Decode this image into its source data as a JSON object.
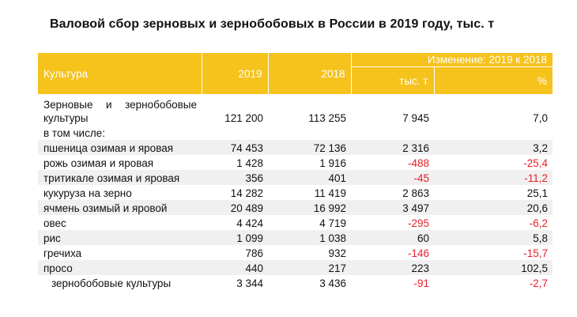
{
  "title": "Валовой сбор зерновых и зернобобовых в России в 2019 году, тыс. т",
  "table": {
    "headers": {
      "culture": "Культура",
      "y2019": "2019",
      "y2018": "2018",
      "change": "Изменение: 2019 к 2018",
      "abs": "тыс. т",
      "pct": "%"
    },
    "rows": [
      {
        "name": "Зерновые и зернобобовые культуры",
        "v2019": "121 200",
        "v2018": "113 255",
        "diff": "7 945",
        "pct": "7,0"
      },
      {
        "name": "в том числе:",
        "v2019": "",
        "v2018": "",
        "diff": "",
        "pct": ""
      },
      {
        "name": "пшеница озимая и яровая",
        "v2019": "74 453",
        "v2018": "72 136",
        "diff": "2 316",
        "pct": "3,2"
      },
      {
        "name": "рожь озимая и яровая",
        "v2019": "1 428",
        "v2018": "1 916",
        "diff": "-488",
        "pct": "-25,4"
      },
      {
        "name": "тритикале озимая и яровая",
        "v2019": "356",
        "v2018": "401",
        "diff": "-45",
        "pct": "-11,2"
      },
      {
        "name": "кукуруза на зерно",
        "v2019": "14 282",
        "v2018": "11 419",
        "diff": "2 863",
        "pct": "25,1"
      },
      {
        "name": "ячмень озимый и яровой",
        "v2019": "20 489",
        "v2018": "16 992",
        "diff": "3 497",
        "pct": "20,6"
      },
      {
        "name": "овес",
        "v2019": "4 424",
        "v2018": "4 719",
        "diff": "-295",
        "pct": "-6,2"
      },
      {
        "name": "рис",
        "v2019": "1 099",
        "v2018": "1 038",
        "diff": "60",
        "pct": "5,8"
      },
      {
        "name": "гречиха",
        "v2019": "786",
        "v2018": "932",
        "diff": "-146",
        "pct": "-15,7"
      },
      {
        "name": "просо",
        "v2019": "440",
        "v2018": "217",
        "diff": "223",
        "pct": "102,5"
      },
      {
        "name": "зернобобовые культуры",
        "v2019": "3 344",
        "v2018": "3 436",
        "diff": "-91",
        "pct": "-2,7"
      }
    ]
  },
  "colors": {
    "header_bg": "#f6c21c",
    "header_text": "#ffffff",
    "row_shade": "#f0f0f0",
    "negative": "#e8202a"
  }
}
